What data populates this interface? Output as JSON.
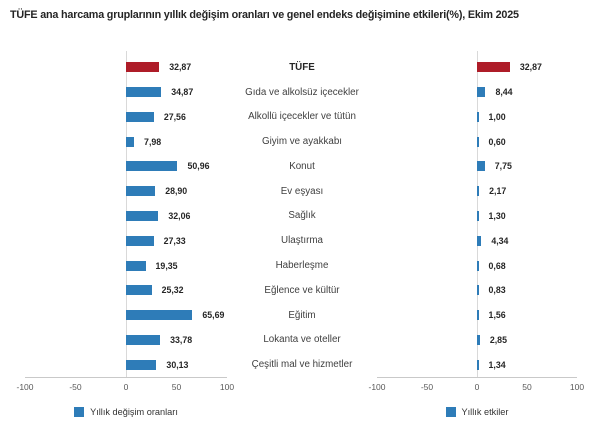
{
  "title": "TÜFE ana harcama gruplarının yıllık değişim oranları ve genel endeks değişimine etkileri(%), Ekim 2025",
  "colors": {
    "bar_default": "#2e7cb8",
    "bar_highlight": "#ae1c28",
    "axis_line": "#c9c9c9",
    "zero_line": "#d9d9d9",
    "tick_text": "#595959",
    "category_text": "#404040",
    "value_text": "#262626"
  },
  "chart_data": [
    {
      "type": "bar",
      "orientation": "horizontal",
      "legend": "Yıllık değişim oranları",
      "legend_position": "bottom-center",
      "xlim": [
        -100,
        100
      ],
      "xticks": [
        -100,
        -50,
        0,
        50,
        100
      ],
      "grid": false,
      "highlight_index": 0,
      "categories": [
        "TÜFE",
        "Gıda ve alkolsüz içecekler",
        "Alkollü içecekler ve tütün",
        "Giyim ve ayakkabı",
        "Konut",
        "Ev eşyası",
        "Sağlık",
        "Ulaştırma",
        "Haberleşme",
        "Eğlence ve kültür",
        "Eğitim",
        "Lokanta ve oteller",
        "Çeşitli mal ve hizmetler"
      ],
      "values": [
        32.87,
        34.87,
        27.56,
        7.98,
        50.96,
        28.9,
        32.06,
        27.33,
        19.35,
        25.32,
        65.69,
        33.78,
        30.13
      ],
      "value_labels": [
        "32,87",
        "34,87",
        "27,56",
        "7,98",
        "50,96",
        "28,90",
        "32,06",
        "27,33",
        "19,35",
        "25,32",
        "65,69",
        "33,78",
        "30,13"
      ]
    },
    {
      "type": "bar",
      "orientation": "horizontal",
      "legend": "Yıllık etkiler",
      "legend_position": "bottom-center",
      "xlim": [
        -100,
        100
      ],
      "xticks": [
        -100,
        -50,
        0,
        50,
        100
      ],
      "grid": false,
      "highlight_index": 0,
      "categories": [
        "TÜFE",
        "Gıda ve alkolsüz içecekler",
        "Alkollü içecekler ve tütün",
        "Giyim ve ayakkabı",
        "Konut",
        "Ev eşyası",
        "Sağlık",
        "Ulaştırma",
        "Haberleşme",
        "Eğlence ve kültür",
        "Eğitim",
        "Lokanta ve oteller",
        "Çeşitli mal ve hizmetler"
      ],
      "values": [
        32.87,
        8.44,
        1.0,
        0.6,
        7.75,
        2.17,
        1.3,
        4.34,
        0.68,
        0.83,
        1.56,
        2.85,
        1.34
      ],
      "value_labels": [
        "32,87",
        "8,44",
        "1,00",
        "0,60",
        "7,75",
        "2,17",
        "1,30",
        "4,34",
        "0,68",
        "0,83",
        "1,56",
        "2,85",
        "1,34"
      ]
    }
  ]
}
